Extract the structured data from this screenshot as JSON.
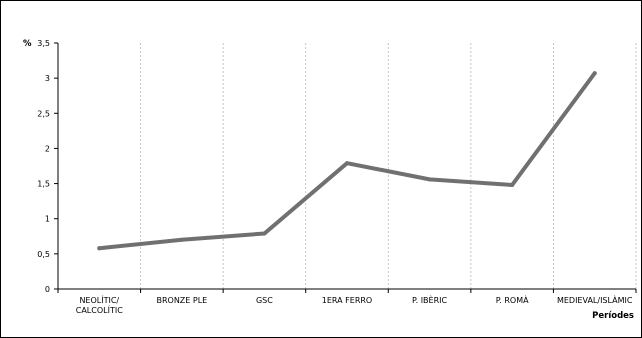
{
  "chart_data": {
    "type": "line",
    "ylabel": "%",
    "xlabel": "Períodes",
    "categories": [
      [
        "NEOLÍTIC/",
        "CALCOLÍTIC"
      ],
      [
        "BRONZE PLE"
      ],
      [
        "GSC"
      ],
      [
        "1ERA FERRO"
      ],
      [
        "P. IBÈRIC"
      ],
      [
        "P. ROMÀ"
      ],
      [
        "MEDIEVAL/ISLÀMIC"
      ]
    ],
    "values": [
      0.58,
      0.7,
      0.79,
      1.79,
      1.56,
      1.48,
      3.07
    ],
    "ylim": [
      0,
      3.5
    ],
    "yticks": [
      0,
      0.5,
      1,
      1.5,
      2,
      2.5,
      3,
      3.5
    ],
    "ytick_labels": [
      "0",
      "0,5",
      "1",
      "1,5",
      "2",
      "2,5",
      "3",
      "3,5"
    ],
    "grid": "vertical dashed",
    "line_color": "#707070"
  }
}
